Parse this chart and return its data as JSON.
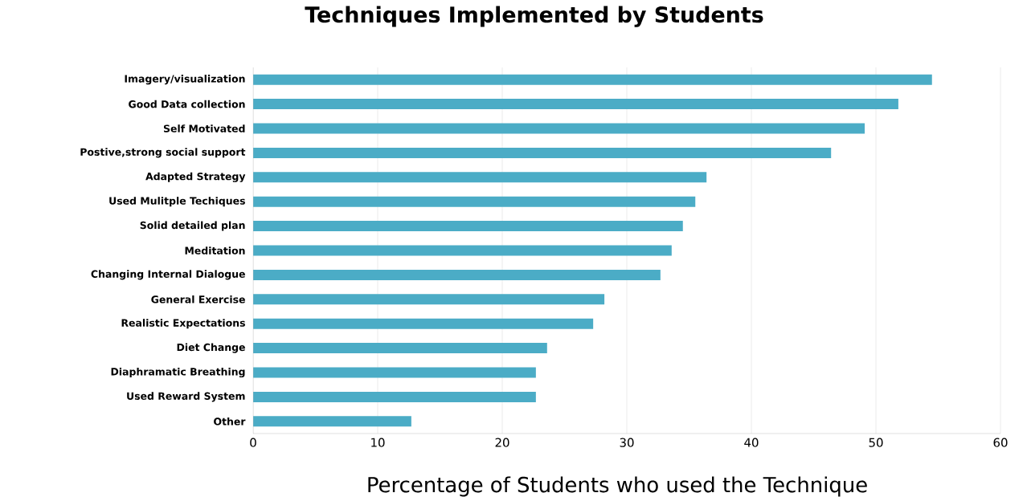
{
  "chart_data": {
    "type": "bar",
    "orientation": "horizontal",
    "title": "Techniques Implemented by Students",
    "xlabel": "Percentage of Students who used the Technique",
    "categories": [
      "Imagery/visualization",
      "Good Data collection",
      "Self Motivated",
      "Postive,strong social support",
      "Adapted Strategy",
      "Used Mulitple Techiques",
      "Solid detailed plan",
      "Meditation",
      "Changing Internal Dialogue",
      "General Exercise",
      "Realistic Expectations",
      "Diet Change",
      "Diaphramatic Breathing",
      "Used Reward System",
      "Other"
    ],
    "values": [
      54.5,
      51.8,
      49.1,
      46.4,
      36.4,
      35.5,
      34.5,
      33.6,
      32.7,
      28.2,
      27.3,
      23.6,
      22.7,
      22.7,
      12.7
    ],
    "color": "#4bacc6",
    "xlim": [
      0,
      60
    ],
    "xticks": [
      0,
      10,
      20,
      30,
      40,
      50,
      60
    ],
    "grid": "x"
  }
}
